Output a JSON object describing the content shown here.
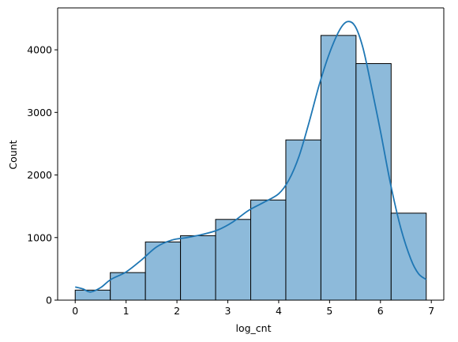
{
  "chart_data": {
    "type": "histogram",
    "title": "",
    "xlabel": "log_cnt",
    "ylabel": "Count",
    "xlim": [
      -0.345,
      7.245
    ],
    "ylim": [
      0,
      4670
    ],
    "xticks": [
      0,
      1,
      2,
      3,
      4,
      5,
      6,
      7
    ],
    "yticks": [
      0,
      1000,
      2000,
      3000,
      4000
    ],
    "grid": false,
    "bins": [
      {
        "x0": 0.0,
        "x1": 0.69,
        "count": 160
      },
      {
        "x0": 0.69,
        "x1": 1.38,
        "count": 440
      },
      {
        "x0": 1.38,
        "x1": 2.07,
        "count": 930
      },
      {
        "x0": 2.07,
        "x1": 2.76,
        "count": 1030
      },
      {
        "x0": 2.76,
        "x1": 3.45,
        "count": 1290
      },
      {
        "x0": 3.45,
        "x1": 4.14,
        "count": 1600
      },
      {
        "x0": 4.14,
        "x1": 4.83,
        "count": 2560
      },
      {
        "x0": 4.83,
        "x1": 5.52,
        "count": 4230
      },
      {
        "x0": 5.52,
        "x1": 6.21,
        "count": 3780
      },
      {
        "x0": 6.21,
        "x1": 6.9,
        "count": 1390
      }
    ],
    "kde": {
      "x": [
        0.0,
        0.15,
        0.3,
        0.5,
        0.7,
        1.0,
        1.3,
        1.6,
        1.9,
        2.2,
        2.5,
        2.8,
        3.1,
        3.4,
        3.7,
        4.0,
        4.2,
        4.4,
        4.6,
        4.8,
        5.0,
        5.2,
        5.35,
        5.5,
        5.65,
        5.8,
        6.0,
        6.2,
        6.4,
        6.6,
        6.75,
        6.9
      ],
      "y": [
        210,
        180,
        130,
        200,
        330,
        450,
        640,
        850,
        960,
        1000,
        1050,
        1120,
        1250,
        1430,
        1560,
        1700,
        1920,
        2300,
        2850,
        3450,
        3950,
        4320,
        4450,
        4380,
        4050,
        3500,
        2700,
        1850,
        1150,
        650,
        420,
        330
      ]
    },
    "colors": {
      "bar_fill": "#8dbada",
      "bar_edge": "#000000",
      "kde_line": "#1f77b4"
    }
  }
}
